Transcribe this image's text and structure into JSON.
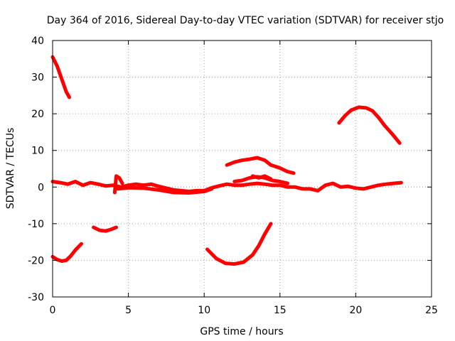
{
  "chart_data": {
    "type": "scatter",
    "title": "Day 364 of 2016, Sidereal Day-to-day VTEC variation (SDTVAR) for receiver stjo",
    "xlabel": "GPS time / hours",
    "ylabel": "SDTVAR / TECUs",
    "xlim": [
      0,
      25
    ],
    "ylim": [
      -30,
      40
    ],
    "xticks": [
      0,
      5,
      10,
      15,
      20,
      25
    ],
    "yticks": [
      -30,
      -20,
      -10,
      0,
      10,
      20,
      30,
      40
    ],
    "grid": true,
    "marker_color": "#ff0000",
    "segments": [
      {
        "name": "arc-1",
        "x": [
          0.0,
          0.3,
          0.6,
          0.9,
          1.1
        ],
        "y": [
          35.5,
          33,
          29.5,
          26,
          24.5
        ]
      },
      {
        "name": "arc-2",
        "x": [
          0.0,
          0.3,
          0.6,
          0.9,
          1.2,
          1.5,
          1.9
        ],
        "y": [
          -19,
          -19.8,
          -20.2,
          -20,
          -18.8,
          -17.2,
          -15.5
        ]
      },
      {
        "name": "arc-3",
        "x": [
          2.7,
          3.1,
          3.5,
          3.9,
          4.2
        ],
        "y": [
          -11,
          -11.8,
          -12,
          -11.5,
          -11
        ]
      },
      {
        "name": "arc-4",
        "x": [
          10.2,
          10.8,
          11.4,
          12.0,
          12.6,
          13.2,
          13.6,
          14.0,
          14.4
        ],
        "y": [
          -17,
          -19.5,
          -20.8,
          -21,
          -20.5,
          -18.5,
          -16,
          -12.8,
          -10
        ]
      },
      {
        "name": "arc-5",
        "x": [
          11.5,
          12.0,
          12.5,
          13.0,
          13.5,
          14.0,
          14.4,
          15.0,
          15.5,
          15.9
        ],
        "y": [
          6,
          6.8,
          7.3,
          7.6,
          8,
          7.3,
          6,
          5.2,
          4.2,
          3.8
        ]
      },
      {
        "name": "arc-6",
        "x": [
          18.9,
          19.3,
          19.7,
          20.2,
          20.7,
          21.1,
          21.5,
          21.9,
          22.4,
          22.9
        ],
        "y": [
          17.5,
          19.5,
          21,
          21.8,
          21.6,
          20.8,
          19,
          16.8,
          14.5,
          12
        ]
      },
      {
        "name": "band-near-zero",
        "x": [
          0.0,
          0.5,
          1.0,
          1.5,
          2.0,
          2.5,
          3.0,
          3.5,
          4.0,
          4.5,
          5.0,
          5.5,
          6.0,
          6.5,
          7.0,
          7.5,
          8.0,
          8.5,
          9.0,
          9.5,
          10.0,
          10.5,
          11.0,
          11.5,
          12.0,
          12.5,
          13.0,
          13.5,
          14.0,
          14.5,
          15.0,
          15.5,
          16.0,
          16.5,
          17.0,
          17.5,
          18.0,
          18.5,
          19.0,
          19.5,
          20.0,
          20.5,
          21.0,
          21.5,
          22.0,
          22.5,
          23.0
        ],
        "y": [
          1.5,
          1.2,
          0.8,
          1.5,
          0.5,
          1.2,
          0.8,
          0.3,
          0.5,
          0.0,
          0.5,
          0.8,
          0.5,
          0.8,
          0.2,
          -0.3,
          -0.8,
          -1.0,
          -1.2,
          -1.0,
          -1.0,
          -0.2,
          0.3,
          0.8,
          0.5,
          0.5,
          0.8,
          1.0,
          0.8,
          0.5,
          0.5,
          0.0,
          0.0,
          -0.5,
          -0.5,
          -1.0,
          0.5,
          1.0,
          0.0,
          0.2,
          -0.3,
          -0.5,
          0.0,
          0.5,
          0.8,
          1.0,
          1.2
        ]
      },
      {
        "name": "band-upper",
        "x": [
          12.0,
          12.5,
          13.0,
          13.5,
          14.0,
          14.5,
          15.0,
          15.5
        ],
        "y": [
          1.5,
          1.8,
          2.5,
          2.8,
          2.5,
          1.8,
          1.5,
          1.0
        ]
      },
      {
        "name": "band-lower",
        "x": [
          4.3,
          5.0,
          6.0,
          7.0,
          8.0,
          9.0,
          10.0,
          10.5
        ],
        "y": [
          -0.5,
          -0.2,
          -0.3,
          -0.8,
          -1.5,
          -1.6,
          -1.2,
          -0.5
        ]
      },
      {
        "name": "spike-4h",
        "x": [
          4.1,
          4.2,
          4.4,
          4.6
        ],
        "y": [
          -1.5,
          3.0,
          2.5,
          1.0
        ]
      },
      {
        "name": "spike-13h",
        "x": [
          13.2,
          13.6,
          14.0,
          14.4
        ],
        "y": [
          3.0,
          2.5,
          3.0,
          2.2
        ]
      }
    ]
  }
}
